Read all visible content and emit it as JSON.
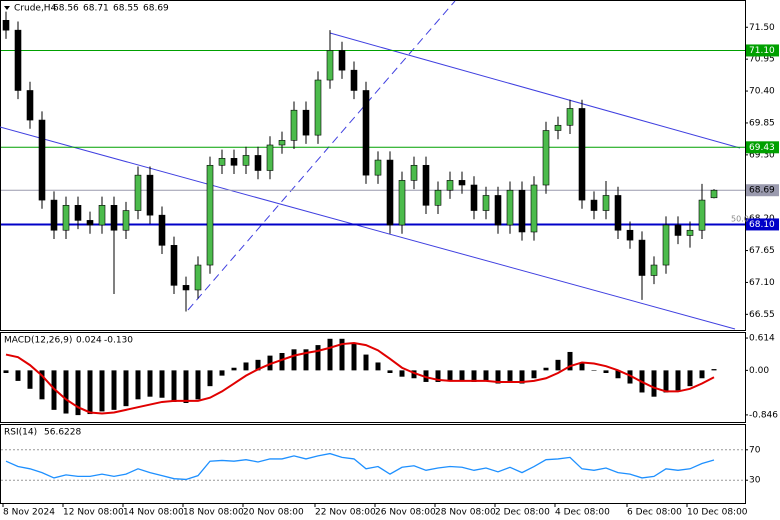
{
  "chart_data": [
    {
      "type": "candlestick",
      "title": "Crude,H4",
      "categories": [
        "8 Nov 2024",
        null,
        null,
        null,
        null,
        "12 Nov 08:00",
        null,
        null,
        null,
        null,
        "14 Nov 08:00",
        null,
        null,
        null,
        null,
        "18 Nov 08:00",
        null,
        null,
        null,
        null,
        "20 Nov 08:00",
        null,
        null,
        null,
        null,
        null,
        "22 Nov 08:00",
        null,
        null,
        null,
        null,
        "26 Nov 08:00",
        null,
        null,
        null,
        null,
        "28 Nov 08:00",
        null,
        null,
        null,
        null,
        "2 Dec 08:00",
        null,
        null,
        null,
        null,
        "4 Dec 08:00",
        null,
        null,
        null,
        null,
        null,
        "6 Dec 08:00",
        null,
        null,
        null,
        null,
        "10 Dec 08:00",
        null,
        null
      ],
      "open": [
        71.62,
        71.45,
        70.41,
        69.9,
        68.52,
        68.0,
        68.43,
        68.17,
        68.09,
        68.43,
        68.0,
        68.34,
        68.95,
        68.26,
        67.74,
        67.05,
        66.97,
        67.4,
        69.12,
        69.24,
        69.12,
        69.29,
        69.03,
        69.47,
        69.55,
        70.07,
        69.64,
        70.59,
        71.1,
        70.76,
        70.41,
        68.95,
        69.21,
        68.09,
        68.86,
        69.12,
        68.43,
        68.69,
        68.86,
        68.78,
        68.34,
        68.6,
        68.09,
        68.69,
        67.97,
        68.78,
        69.72,
        69.81,
        70.1,
        68.52,
        68.34,
        68.6,
        68.0,
        67.83,
        67.22,
        67.4,
        68.09,
        67.91,
        68.0,
        68.56
      ],
      "high": [
        71.77,
        71.6,
        70.56,
        70.05,
        68.67,
        68.58,
        68.58,
        68.32,
        68.58,
        68.58,
        68.49,
        69.1,
        69.1,
        68.41,
        67.89,
        67.2,
        67.55,
        69.27,
        69.39,
        69.39,
        69.44,
        69.44,
        69.62,
        69.7,
        70.22,
        70.22,
        70.74,
        71.45,
        71.25,
        70.91,
        70.56,
        69.36,
        69.36,
        69.01,
        69.27,
        69.27,
        68.84,
        69.01,
        69.01,
        68.93,
        68.75,
        68.75,
        68.84,
        68.84,
        68.93,
        69.87,
        69.96,
        70.25,
        70.25,
        68.67,
        68.85,
        68.75,
        68.15,
        67.98,
        67.55,
        68.24,
        68.24,
        68.15,
        68.8,
        68.71
      ],
      "low": [
        71.3,
        70.26,
        69.75,
        68.37,
        67.85,
        67.85,
        68.02,
        67.94,
        67.94,
        66.9,
        67.85,
        68.19,
        68.11,
        67.59,
        66.9,
        66.6,
        66.82,
        67.25,
        68.97,
        68.97,
        68.97,
        68.88,
        68.88,
        69.32,
        69.4,
        69.49,
        69.49,
        70.44,
        70.61,
        70.26,
        68.8,
        68.8,
        67.94,
        67.94,
        68.71,
        68.28,
        68.28,
        68.54,
        68.63,
        68.19,
        68.19,
        67.94,
        67.94,
        67.82,
        67.82,
        68.63,
        69.57,
        69.66,
        68.37,
        68.19,
        68.19,
        67.85,
        67.68,
        66.8,
        67.07,
        67.25,
        67.76,
        67.7,
        67.85,
        68.55
      ],
      "close": [
        71.45,
        70.41,
        69.9,
        68.52,
        68.0,
        68.43,
        68.17,
        68.09,
        68.43,
        68.0,
        68.34,
        68.95,
        68.26,
        67.74,
        67.05,
        66.97,
        67.4,
        69.12,
        69.24,
        69.12,
        69.29,
        69.03,
        69.47,
        69.55,
        70.07,
        69.64,
        70.59,
        71.1,
        70.76,
        70.41,
        68.95,
        69.21,
        68.09,
        68.86,
        69.12,
        68.43,
        68.69,
        68.86,
        68.78,
        68.34,
        68.6,
        68.09,
        68.69,
        67.97,
        68.78,
        69.72,
        69.81,
        70.1,
        68.52,
        68.34,
        68.6,
        68.0,
        67.83,
        67.22,
        67.4,
        68.09,
        67.91,
        68.0,
        68.52,
        68.69
      ],
      "up_color": "#4cbb4c",
      "down_color": "#000000",
      "ylim": [
        66.28,
        71.97
      ],
      "yticks": [
        {
          "value": 71.5,
          "label": "71.50"
        },
        70.95,
        {
          "value": 70.4,
          "label": "70.40"
        },
        69.85,
        {
          "value": 69.3,
          "label": "69.30"
        },
        {
          "value": 68.2,
          "label": "68.20"
        },
        67.65,
        {
          "value": 67.1,
          "label": "67.10"
        },
        66.55
      ],
      "hlines": [
        {
          "value": 71.1,
          "label": "71.10",
          "color": "#00a000",
          "text_color": "#ffffff"
        },
        {
          "value": 69.43,
          "label": "69.43",
          "color": "#00a000",
          "text_color": "#ffffff"
        },
        {
          "value": 68.69,
          "label": "68.69",
          "color": "#9a9aae",
          "text_color": "#000000"
        },
        {
          "value": 68.1,
          "label": "68.10",
          "color": "#0000c8",
          "text_color": "#ffffff"
        }
      ],
      "annotations": [
        "50.0"
      ]
    },
    {
      "type": "macd",
      "title": "MACD(12,26,9)",
      "readout": [
        0.024,
        {
          "value": -0.13,
          "label": "-0.130"
        }
      ],
      "series": [
        {
          "color": "#000000",
          "values": [
            -0.05,
            -0.2,
            -0.35,
            -0.55,
            -0.75,
            -0.82,
            -0.85,
            -0.83,
            -0.78,
            -0.75,
            -0.68,
            -0.55,
            -0.5,
            -0.52,
            -0.6,
            -0.62,
            -0.55,
            -0.3,
            -0.1,
            0.05,
            0.15,
            0.2,
            0.28,
            0.33,
            0.4,
            0.4,
            0.48,
            0.6,
            0.6,
            0.52,
            0.3,
            0.15,
            -0.05,
            -0.12,
            -0.15,
            -0.22,
            -0.22,
            -0.2,
            -0.2,
            -0.22,
            -0.2,
            -0.25,
            -0.2,
            -0.25,
            -0.15,
            0.05,
            0.2,
            0.35,
            0.15,
            0.0,
            -0.05,
            -0.15,
            -0.25,
            -0.42,
            -0.5,
            -0.42,
            -0.38,
            -0.3,
            -0.15,
            0.024
          ]
        },
        {
          "color": "#e00000",
          "values": [
            0.3,
            0.25,
            0.1,
            -0.1,
            -0.35,
            -0.55,
            -0.7,
            -0.8,
            -0.82,
            -0.8,
            -0.75,
            -0.7,
            -0.65,
            -0.6,
            -0.58,
            -0.58,
            -0.58,
            -0.52,
            -0.4,
            -0.25,
            -0.1,
            0.02,
            0.12,
            0.2,
            0.28,
            0.33,
            0.37,
            0.43,
            0.5,
            0.52,
            0.48,
            0.38,
            0.22,
            0.05,
            -0.05,
            -0.13,
            -0.18,
            -0.2,
            -0.2,
            -0.2,
            -0.2,
            -0.22,
            -0.22,
            -0.22,
            -0.2,
            -0.15,
            -0.05,
            0.08,
            0.15,
            0.13,
            0.08,
            0.0,
            -0.1,
            -0.22,
            -0.33,
            -0.4,
            -0.4,
            -0.35,
            -0.25,
            -0.13
          ]
        }
      ],
      "ylim": [
        -1.0,
        0.71
      ],
      "yticks": [
        0.614,
        {
          "value": 0,
          "label": "0.00"
        },
        -0.846
      ]
    },
    {
      "type": "line",
      "title": "RSI(14)",
      "color": "#1e90ff",
      "values": [
        55,
        48,
        45,
        40,
        33,
        37,
        35,
        35,
        38,
        35,
        38,
        45,
        40,
        36,
        32,
        31,
        36,
        55,
        56,
        55,
        57,
        54,
        58,
        58,
        62,
        58,
        62,
        65,
        60,
        58,
        45,
        48,
        38,
        47,
        49,
        43,
        46,
        48,
        47,
        43,
        46,
        41,
        47,
        40,
        48,
        57,
        58,
        60,
        45,
        43,
        46,
        40,
        38,
        33,
        35,
        45,
        43,
        45,
        52,
        56.6228
      ],
      "ylim": [
        0,
        100
      ],
      "yticks": [
        70,
        30
      ]
    }
  ]
}
